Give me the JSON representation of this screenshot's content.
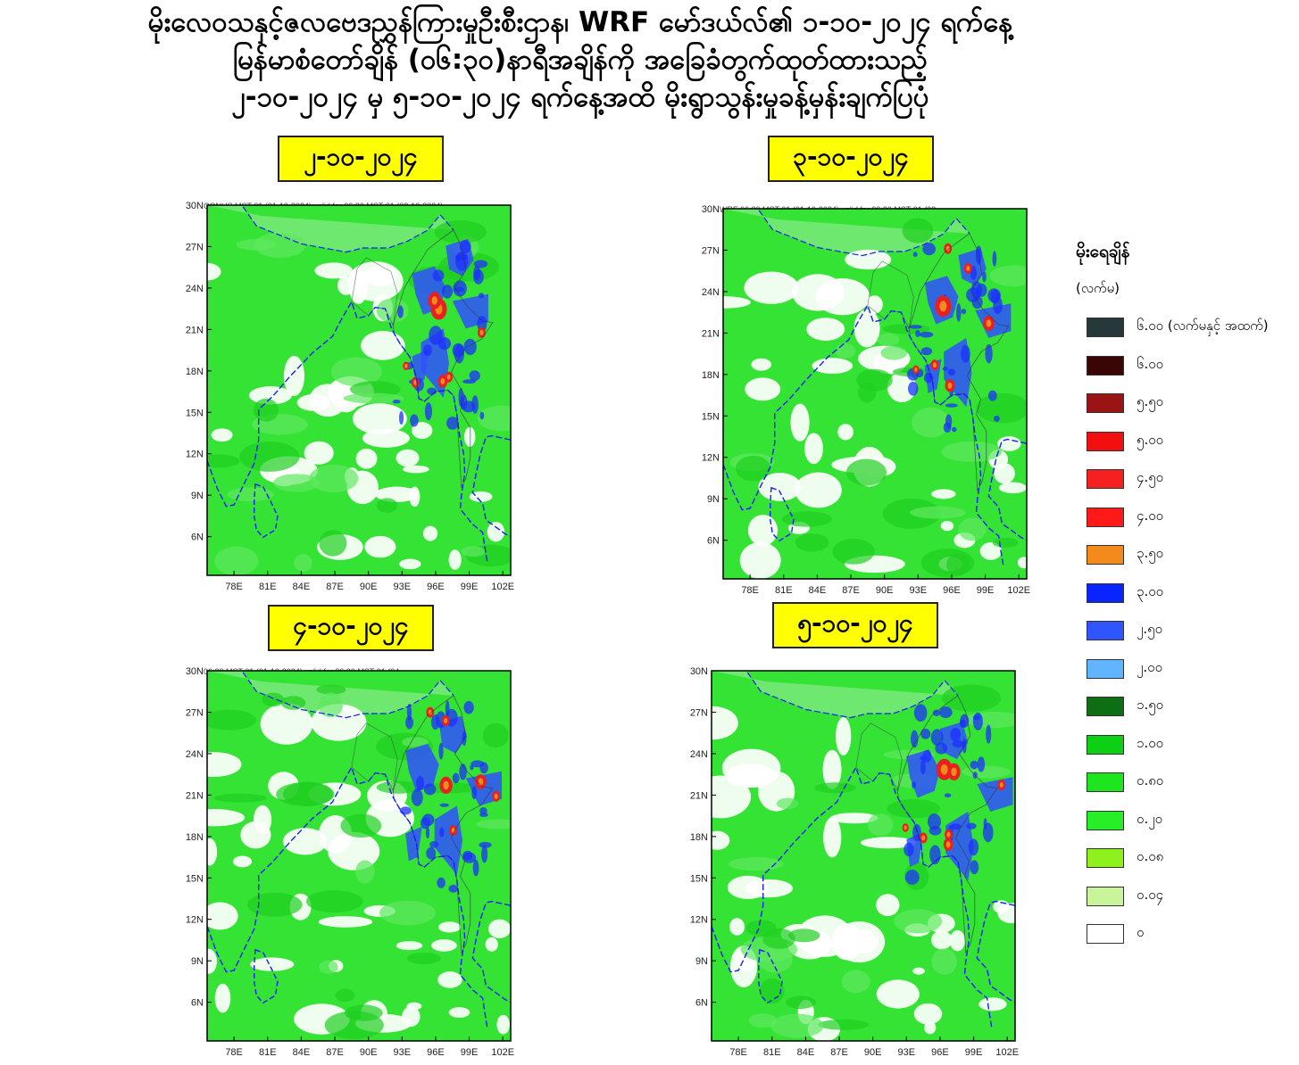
{
  "title": {
    "line1": "မိုးလေဝသနှင့်ဇလဗေဒညွှန်ကြားမှုဦးစီးဌာန၊ WRF မော်ဒယ်လ်၏ ၁-၁၀-၂၀၂၄ ရက်နေ့",
    "line2": "မြန်မာစံတော်ချိန် (၀၆:၃၀)နာရီအချိန်ကို အခြေခံတွက်ထုတ်ထားသည့်",
    "line3": "၂-၁၀-၂၀၂၄ မှ ၅-၁၀-၂၀၂၄ ရက်နေ့အထိ မိုးရွာသွန်းမှုခန့်မှန်းချက်ပြပုံ"
  },
  "panels": [
    {
      "date": "၂-၁၀-၂၀၂၄",
      "header": "CONUS MST 01 (01-10-2024) valid for 06:30 MST 01 (02-10-2024)"
    },
    {
      "date": "၃-၁၀-၂၀၂၄",
      "header": "WRF 06:30 MST 01 (01-10-2024) valid for 06:30 MST 01 (03-"
    },
    {
      "date": "၄-၁၀-၂၀၂၄",
      "header": "06:30 MST 01 (01-10-2024) valid for 06:30 MST 01 (04-"
    },
    {
      "date": "၅-၁၀-၂၀၂၄",
      "header": ""
    }
  ],
  "axes": {
    "y_ticks": [
      "30N",
      "27N",
      "24N",
      "21N",
      "18N",
      "15N",
      "12N",
      "9N",
      "6N"
    ],
    "x_ticks": [
      "78E",
      "81E",
      "84E",
      "87E",
      "90E",
      "93E",
      "96E",
      "99E",
      "102E"
    ]
  },
  "legend": {
    "title": "မိုးရေချိန်",
    "unit": "(လက်မ)",
    "items": [
      {
        "label": "၆.၀၀ (လက်မနှင့် အထက်)",
        "color": "#27383b"
      },
      {
        "label": "၆.၀၀",
        "color": "#3a0505"
      },
      {
        "label": "၅.၅၀",
        "color": "#9a1414"
      },
      {
        "label": "၅.၀၀",
        "color": "#f20f0f"
      },
      {
        "label": "၄.၅၀",
        "color": "#f52020"
      },
      {
        "label": "၄.၀၀",
        "color": "#ff1a1a"
      },
      {
        "label": "၃.၅၀",
        "color": "#f28a1c"
      },
      {
        "label": "၃.၀၀",
        "color": "#0a24ff"
      },
      {
        "label": "၂.၅၀",
        "color": "#2e55ff"
      },
      {
        "label": "၂.၀၀",
        "color": "#61b4ff"
      },
      {
        "label": "၁.၅၀",
        "color": "#0d6e14"
      },
      {
        "label": "၁.၀၀",
        "color": "#0dcf14"
      },
      {
        "label": "၀.၈၀",
        "color": "#1ee61e"
      },
      {
        "label": "၀.၂၀",
        "color": "#28ee28"
      },
      {
        "label": "၀.၀၈",
        "color": "#8ef01c"
      },
      {
        "label": "၀.၀၄",
        "color": "#c9f59a"
      },
      {
        "label": "၀",
        "color": "#ffffff"
      }
    ]
  }
}
